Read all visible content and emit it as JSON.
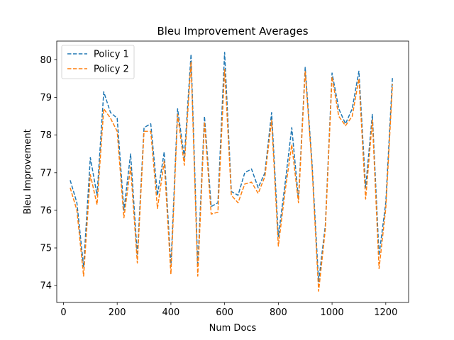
{
  "chart_data": {
    "type": "line",
    "title": "Bleu Improvement Averages",
    "xlabel": "Num Docs",
    "ylabel": "Bleu Improvement",
    "xlim": [
      -25,
      1285
    ],
    "ylim": [
      73.55,
      80.5
    ],
    "xticks": [
      0,
      200,
      400,
      600,
      800,
      1000,
      1200
    ],
    "yticks": [
      74,
      75,
      76,
      77,
      78,
      79,
      80
    ],
    "legend_position": "top-left",
    "x": [
      25,
      50,
      75,
      100,
      125,
      150,
      175,
      200,
      225,
      250,
      275,
      300,
      325,
      350,
      375,
      400,
      425,
      450,
      475,
      500,
      525,
      550,
      575,
      600,
      625,
      650,
      675,
      700,
      725,
      750,
      775,
      800,
      825,
      850,
      875,
      900,
      925,
      950,
      975,
      1000,
      1025,
      1050,
      1075,
      1100,
      1125,
      1150,
      1175,
      1200,
      1225
    ],
    "series": [
      {
        "name": "Policy 1",
        "color": "#1f77b4",
        "values": [
          76.8,
          76.2,
          74.5,
          77.4,
          76.4,
          79.15,
          78.6,
          78.45,
          76.0,
          77.5,
          74.8,
          78.2,
          78.3,
          76.4,
          77.55,
          74.5,
          78.7,
          77.4,
          80.15,
          74.5,
          78.5,
          76.1,
          76.2,
          80.2,
          76.5,
          76.4,
          77.0,
          77.1,
          76.6,
          77.0,
          78.6,
          75.3,
          76.7,
          78.2,
          76.3,
          79.8,
          77.3,
          74.1,
          75.6,
          79.65,
          78.7,
          78.3,
          78.7,
          79.7,
          76.6,
          78.55,
          74.8,
          76.2,
          79.55
        ]
      },
      {
        "name": "Policy 2",
        "color": "#ff7f0e",
        "values": [
          76.6,
          76.0,
          74.25,
          76.95,
          76.15,
          78.7,
          78.45,
          78.1,
          75.8,
          77.15,
          74.6,
          78.1,
          78.1,
          76.05,
          77.3,
          74.3,
          78.55,
          77.2,
          79.95,
          74.25,
          78.35,
          75.9,
          75.95,
          79.75,
          76.4,
          76.2,
          76.7,
          76.75,
          76.45,
          76.9,
          78.4,
          75.05,
          76.5,
          77.75,
          76.2,
          79.7,
          77.2,
          73.85,
          75.5,
          79.55,
          78.5,
          78.25,
          78.5,
          79.5,
          76.3,
          78.4,
          74.45,
          76.05,
          79.35
        ]
      }
    ]
  }
}
